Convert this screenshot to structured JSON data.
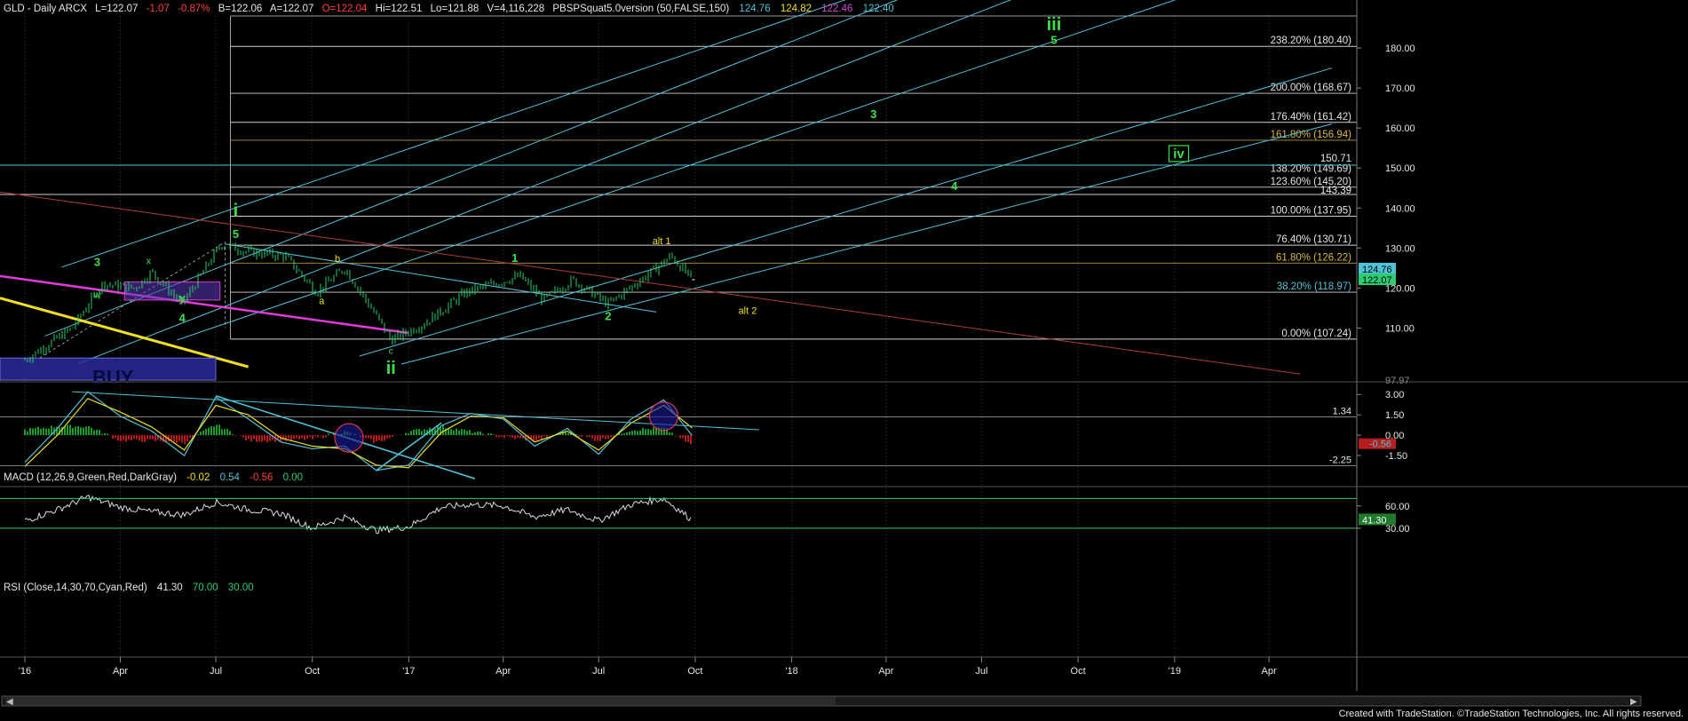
{
  "colors": {
    "background": "#000000",
    "grid": "#3a3a3a",
    "price": "#2ecc71",
    "fib": "#cfcfcf",
    "fib_gold": "#b59a3a",
    "channel": "#4fc3d8",
    "trend_red": "#b33a3a",
    "trend_magenta": "#e23ad8",
    "trend_yellow": "#f0e020",
    "wave_green": "#3ee04a",
    "wave_yellow": "#f0e020",
    "box_blue": "#2a2a9a",
    "box_purple": "#5a3ab8",
    "macd_line": "#4fc3d8",
    "signal_line": "#f0e020",
    "hist_pos": "#1f9a2c",
    "hist_neg": "#b71c1c",
    "rsi_line": "#dcdcdc"
  },
  "header": {
    "symbol": "GLD - Daily  ARCX",
    "last": "L=122.07",
    "change": "-1.07",
    "pct": "-0.87%",
    "bid": "B=122.06",
    "ask": "A=122.07",
    "open": "O=122.04",
    "high": "Hi=122.51",
    "low": "Lo=121.88",
    "volume": "V=4,116,228",
    "study": "PBSPSquat5.0version (50,FALSE,150)",
    "v1": "124.76",
    "v2": "124.82",
    "v3": "122.46",
    "v4": "122.40"
  },
  "price_axis": {
    "ticks": [
      "180.00",
      "170.00",
      "160.00",
      "150.00",
      "140.00",
      "130.00",
      "120.00",
      "110.00"
    ],
    "partial": "97.97",
    "badge_upper": "124.76",
    "badge_lower": "122.07"
  },
  "fib_levels": [
    {
      "label": "238.20% (180.40)"
    },
    {
      "label": "200.00% (168.67)"
    },
    {
      "label": "176.40% (161.42)"
    },
    {
      "label": "161.80% (156.94)"
    },
    {
      "label": "150.71"
    },
    {
      "label": "138.20% (149.69)"
    },
    {
      "label": "123.60% (145.20)"
    },
    {
      "label": "143.39"
    },
    {
      "label": "100.00% (137.95)"
    },
    {
      "label": "76.40% (130.71)"
    },
    {
      "label": "61.80% (126.22)"
    },
    {
      "label": "38.20% (118.97)"
    },
    {
      "label": "0.00% (107.24)"
    }
  ],
  "wave_labels": [
    {
      "text": "iii"
    },
    {
      "text": "5"
    },
    {
      "text": "3"
    },
    {
      "text": "4"
    },
    {
      "text": "iv"
    },
    {
      "text": "i"
    },
    {
      "text": "5"
    },
    {
      "text": "3"
    },
    {
      "text": "x"
    },
    {
      "text": "w"
    },
    {
      "text": "y"
    },
    {
      "text": "4"
    },
    {
      "text": "b"
    },
    {
      "text": "a"
    },
    {
      "text": "c"
    },
    {
      "text": "ii"
    },
    {
      "text": "1"
    },
    {
      "text": "2"
    },
    {
      "text": "alt 1"
    },
    {
      "text": "alt 2"
    },
    {
      "text": "BUY"
    }
  ],
  "macd": {
    "title": "MACD (12,26,9,Green,Red,DarkGray)",
    "v1": "-0.02",
    "v2": "0.54",
    "v3": "-0.56",
    "v4": "0.00",
    "ticks": [
      "3.00",
      "1.50",
      "0.00",
      "-1.50"
    ],
    "ref_upper": "1.34",
    "ref_lower": "-2.25",
    "badge": "-0.56"
  },
  "rsi": {
    "title": "RSI (Close,14,30,70,Cyan,Red)",
    "v1": "41.30",
    "v2": "70.00",
    "v3": "30.00",
    "ticks": [
      "60.00",
      "30.00"
    ],
    "badge": "41.30"
  },
  "time_axis": {
    "ticks": [
      "'16",
      "Apr",
      "Jul",
      "Oct",
      "'17",
      "Apr",
      "Jul",
      "Oct",
      "'18",
      "Apr",
      "Jul",
      "Oct",
      "'19",
      "Apr"
    ]
  },
  "footer": "Created with TradeStation. ©TradeStation Technologies, Inc. All rights reserved.",
  "chart_data": [
    {
      "type": "line",
      "title": "GLD - Daily  ARCX",
      "xlabel": "",
      "ylabel": "",
      "x_range": [
        "2016-01-01",
        "2019-05-31"
      ],
      "ylim": [
        97,
        188
      ],
      "x": [
        "2016-01-01",
        "2016-02-15",
        "2016-03-15",
        "2016-04-15",
        "2016-05-01",
        "2016-05-30",
        "2016-07-06",
        "2016-08-01",
        "2016-09-05",
        "2016-10-05",
        "2016-11-01",
        "2016-12-01",
        "2016-12-15",
        "2017-01-15",
        "2017-02-25",
        "2017-04-17",
        "2017-05-09",
        "2017-06-06",
        "2017-07-10",
        "2017-08-15",
        "2017-09-08",
        "2017-09-28"
      ],
      "series": [
        {
          "values": [
            102,
            110,
            121,
            120,
            124,
            116,
            131,
            129,
            128,
            119,
            125,
            113,
            107,
            111,
            119,
            123,
            117,
            122,
            116,
            123,
            128,
            122.07
          ]
        }
      ],
      "fib_levels": [
        180.4,
        168.67,
        161.42,
        156.94,
        149.69,
        145.2,
        137.95,
        130.71,
        126.22,
        118.97,
        107.24
      ],
      "extra_levels": [
        150.71,
        143.39
      ]
    },
    {
      "type": "line",
      "title": "MACD (12,26,9,Green,Red,DarkGray)",
      "ylim": [
        -3.0,
        3.8
      ],
      "x": [
        "2016-01-01",
        "2016-02-01",
        "2016-03-01",
        "2016-04-01",
        "2016-05-01",
        "2016-06-01",
        "2016-07-01",
        "2016-08-01",
        "2016-09-01",
        "2016-10-01",
        "2016-11-01",
        "2016-12-01",
        "2017-01-01",
        "2017-02-01",
        "2017-03-01",
        "2017-04-01",
        "2017-05-01",
        "2017-06-01",
        "2017-07-01",
        "2017-08-01",
        "2017-09-01",
        "2017-09-28"
      ],
      "series": [
        {
          "name": "MACD",
          "values": [
            -2.0,
            0.5,
            3.2,
            1.4,
            0.3,
            -1.5,
            2.8,
            1.2,
            -0.5,
            -1.0,
            -0.8,
            -2.6,
            -2.2,
            0.7,
            1.6,
            1.2,
            -0.8,
            0.5,
            -1.4,
            1.2,
            2.6,
            -0.02
          ]
        },
        {
          "name": "Signal",
          "values": [
            -2.3,
            0.0,
            2.7,
            1.7,
            0.6,
            -1.1,
            2.2,
            1.5,
            -0.2,
            -0.8,
            -1.0,
            -2.2,
            -2.4,
            0.2,
            1.4,
            1.3,
            -0.5,
            0.3,
            -1.1,
            0.9,
            2.2,
            0.54
          ]
        }
      ],
      "reference_lines": [
        1.34,
        -2.25
      ]
    },
    {
      "type": "line",
      "title": "RSI (Close,14,30,70,Cyan,Red)",
      "ylim": [
        0,
        80
      ],
      "x": [
        "2016-01-01",
        "2016-02-01",
        "2016-03-01",
        "2016-04-01",
        "2016-05-01",
        "2016-06-01",
        "2016-07-01",
        "2016-08-01",
        "2016-09-01",
        "2016-10-01",
        "2016-11-01",
        "2016-12-01",
        "2017-01-01",
        "2017-02-01",
        "2017-03-01",
        "2017-04-01",
        "2017-05-01",
        "2017-06-01",
        "2017-07-01",
        "2017-08-01",
        "2017-09-01",
        "2017-09-28"
      ],
      "series": [
        {
          "name": "RSI",
          "values": [
            40,
            55,
            72,
            58,
            52,
            48,
            65,
            55,
            50,
            30,
            45,
            27,
            32,
            58,
            62,
            60,
            45,
            55,
            40,
            62,
            70,
            41.3
          ]
        }
      ],
      "reference_lines": [
        70,
        30
      ]
    }
  ]
}
